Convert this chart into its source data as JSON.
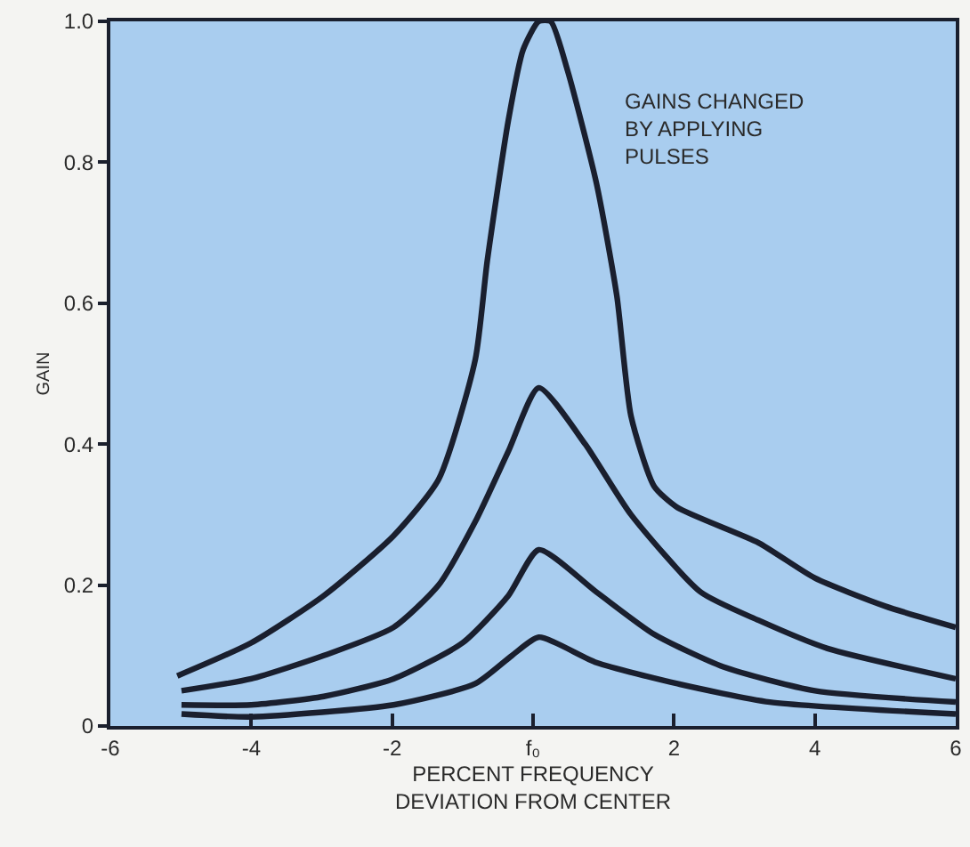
{
  "chart_data": {
    "type": "line",
    "xlabel": "PERCENT FREQUENCY\nDEVIATION FROM CENTER",
    "ylabel": "GAIN",
    "annotations": [
      "GAINS CHANGED\nBY APPLYING\nPULSES"
    ],
    "xlim": [
      -6,
      6
    ],
    "xticks": [
      -6,
      -4,
      -2,
      {
        "value": 0,
        "label": "f₀"
      },
      2,
      4,
      6
    ],
    "ylim": [
      0,
      1.0
    ],
    "yticks": [
      0,
      0.2,
      0.4,
      0.6,
      0.8,
      {
        "value": 1.0,
        "label": "1.0"
      }
    ],
    "grid": false,
    "marker": "none",
    "line_style": "solid",
    "series": [
      {
        "color": "#1a1f2e",
        "x": [
          -5.05,
          -4,
          -2.97,
          -1.98,
          -1.34,
          -0.82,
          -0.65,
          -0.35,
          -0.14,
          0.08,
          0.25,
          0.49,
          0.9,
          1.19,
          1.39,
          1.72,
          2.05,
          3.2,
          4.0,
          5.0,
          6.0
        ],
        "values": [
          0.071,
          0.118,
          0.185,
          0.27,
          0.35,
          0.52,
          0.66,
          0.86,
          0.96,
          1.0,
          1.0,
          0.93,
          0.77,
          0.61,
          0.44,
          0.34,
          0.31,
          0.26,
          0.21,
          0.17,
          0.14
        ]
      },
      {
        "color": "#1a1f2e",
        "x": [
          -4.99,
          -4,
          -2.97,
          -1.98,
          -1.34,
          -0.82,
          -0.35,
          0.08,
          0.74,
          1.39,
          2.38,
          3.2,
          4.18,
          6.0
        ],
        "values": [
          0.05,
          0.067,
          0.1,
          0.14,
          0.2,
          0.29,
          0.39,
          0.48,
          0.4,
          0.3,
          0.19,
          0.15,
          0.11,
          0.067
        ]
      },
      {
        "color": "#1a1f2e",
        "x": [
          -4.99,
          -4,
          -2.97,
          -1.98,
          -1.0,
          -0.35,
          0.08,
          0.9,
          1.72,
          2.7,
          4.0,
          6.0
        ],
        "values": [
          0.03,
          0.03,
          0.042,
          0.067,
          0.118,
          0.185,
          0.25,
          0.19,
          0.13,
          0.084,
          0.05,
          0.034
        ]
      },
      {
        "color": "#1a1f2e",
        "x": [
          -4.99,
          -4,
          -1.98,
          -0.82,
          -0.3,
          0.08,
          0.9,
          2.05,
          3.36,
          6.0
        ],
        "values": [
          0.017,
          0.013,
          0.03,
          0.06,
          0.1,
          0.126,
          0.09,
          0.06,
          0.034,
          0.017
        ]
      }
    ]
  }
}
